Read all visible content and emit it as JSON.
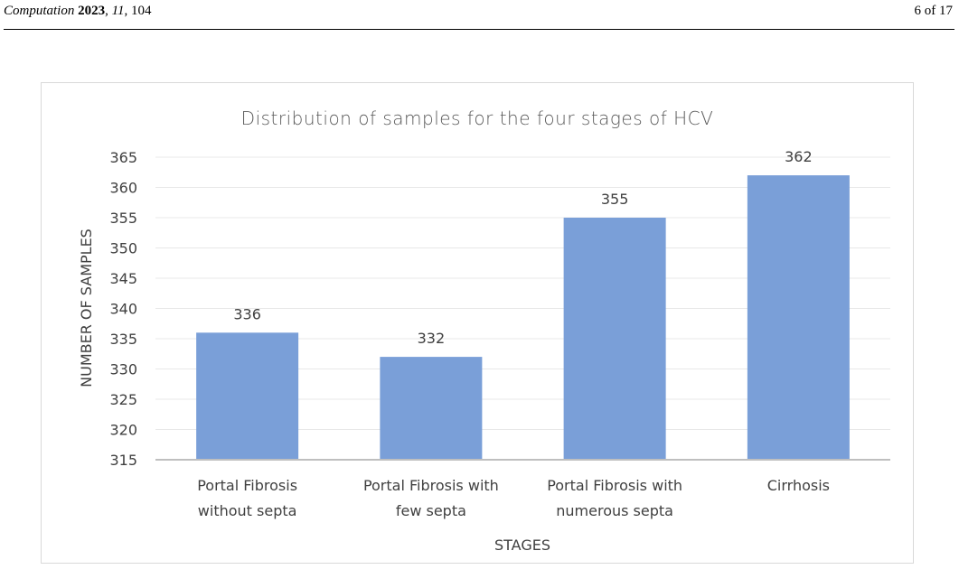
{
  "header": {
    "journal_name": "Computation",
    "year": "2023",
    "volume": "11",
    "article": "104",
    "page_label": "6 of 17"
  },
  "chart_data": {
    "type": "bar",
    "title": "Distribution of samples for the four stages of HCV",
    "xlabel": "STAGES",
    "ylabel": "NUMBER OF SAMPLES",
    "categories": [
      [
        "Portal Fibrosis",
        "without septa"
      ],
      [
        "Portal Fibrosis with",
        "few septa"
      ],
      [
        "Portal Fibrosis with",
        "numerous septa"
      ],
      [
        "Cirrhosis"
      ]
    ],
    "values": [
      336,
      332,
      355,
      362
    ],
    "data_labels": [
      "336",
      "332",
      "355",
      "362"
    ],
    "ylim": [
      315,
      365
    ],
    "yticks": [
      315,
      320,
      325,
      330,
      335,
      340,
      345,
      350,
      355,
      360,
      365
    ],
    "grid": true,
    "legend": "none",
    "bar_color": "#7a9fd8"
  }
}
